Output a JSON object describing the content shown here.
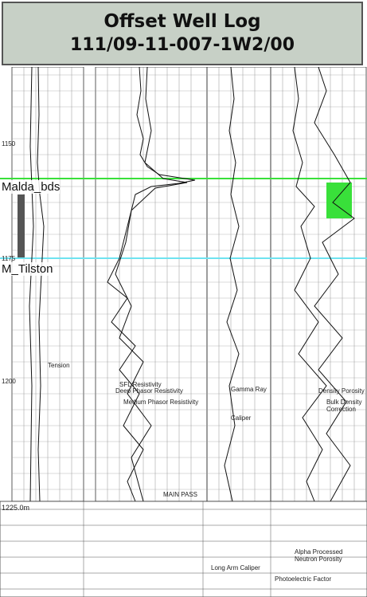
{
  "header": {
    "title_line1": "Offset Well Log",
    "title_line2": "111/09-11-007-1W2/00"
  },
  "formations": [
    {
      "name": "Malda_bds",
      "color": "#39e03a"
    },
    {
      "name": "M_Tilston",
      "color": "#6fe3f0"
    }
  ],
  "depth_labels": [
    "1150",
    "1175",
    "1200",
    "1225.0m"
  ],
  "track_annotations": {
    "main_pass": "MAIN PASS",
    "tension": "Tension",
    "caliper": "Caliper",
    "gamma_ray": "Gamma Ray",
    "sfl_resistivity": "SFL Resistivity",
    "medium_phasor": "Medium Phasor Resistivity",
    "deep_phasor": "Deep Phasor Resistivity",
    "density_porosity": "Density Porosity",
    "neutron_porosity": "Alpha Processed Neutron Porosity",
    "bulk_density_correction": "Bulk Density Correction",
    "pe_factor": "Photoelectric Factor",
    "long_arm_caliper": "Long Arm Caliper"
  },
  "colors": {
    "green_marker": "#39e03a",
    "cyan_marker": "#6fe3f0",
    "green_fill": "#39e03a"
  }
}
